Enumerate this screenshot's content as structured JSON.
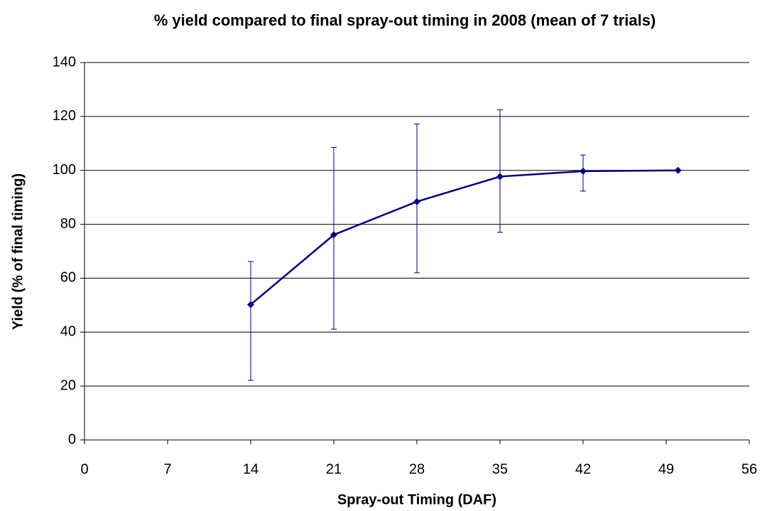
{
  "chart_data": {
    "type": "line",
    "title": "% yield compared to final spray-out timing in 2008 (mean of 7 trials)",
    "x_label": "Spray-out Timing (DAF)",
    "y_label": "Yield (% of final timing)",
    "x": [
      14,
      21,
      28,
      35,
      42,
      50
    ],
    "series": [
      {
        "name": "Yield",
        "color": "#000080",
        "values": [
          50.2,
          76.1,
          88.4,
          97.7,
          99.7,
          100
        ],
        "error_plus": [
          16,
          32.4,
          28.8,
          24.8,
          6,
          null
        ],
        "error_minus": [
          28.1,
          35,
          26.4,
          20.7,
          7.4,
          null
        ]
      }
    ],
    "xlim": [
      0,
      56
    ],
    "xticks": [
      0,
      7,
      14,
      21,
      28,
      35,
      42,
      49,
      56
    ],
    "ylim": [
      0,
      140
    ],
    "yticks": [
      0,
      20,
      40,
      60,
      80,
      100,
      120,
      140
    ],
    "grid": true
  }
}
